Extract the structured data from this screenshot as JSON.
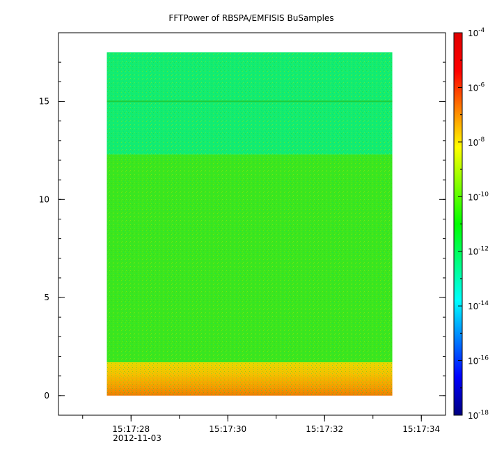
{
  "chart_data": {
    "type": "heatmap",
    "title": "FFTPower of RBSPA/EMFISIS  BuSamples",
    "xlabel": "",
    "ylabel": "",
    "date_label": "2012-11-03",
    "x_ticks": [
      "15:17:28",
      "15:17:30",
      "15:17:32",
      "15:17:34"
    ],
    "y_ticks": [
      0,
      5,
      10,
      15
    ],
    "ylim": [
      -1,
      18.5
    ],
    "xlim": [
      "15:17:26.5",
      "15:17:34.5"
    ],
    "data_extent": {
      "x_start": "15:17:27.5",
      "x_end": "15:17:33.4",
      "y_start": 0,
      "y_end": 17.5
    },
    "colorbar": {
      "scale": "log",
      "range": [
        1e-18,
        0.0001
      ],
      "tick_bases": [
        "10",
        "10",
        "10",
        "10",
        "10",
        "10",
        "10",
        "10"
      ],
      "tick_exponents": [
        "-4",
        "-6",
        "-8",
        "-10",
        "-12",
        "-14",
        "-16",
        "-18"
      ],
      "colormap": [
        "#000080",
        "#0000ff",
        "#0080ff",
        "#00ffff",
        "#00ff80",
        "#00ff00",
        "#80ff00",
        "#ffff00",
        "#ff8000",
        "#ff0000",
        "#e00000"
      ]
    },
    "bands": [
      {
        "y_from": 0,
        "y_to": 1.7,
        "color": "#f5b800",
        "level": "~1e-8"
      },
      {
        "y_from": 1.7,
        "y_to": 12.3,
        "color": "#3be61f",
        "level": "~1e-10"
      },
      {
        "y_from": 12.3,
        "y_to": 17.5,
        "color": "#12ec72",
        "level": "~1e-12"
      }
    ],
    "line_feature": {
      "y": 15,
      "color": "#1fcc3a"
    }
  }
}
